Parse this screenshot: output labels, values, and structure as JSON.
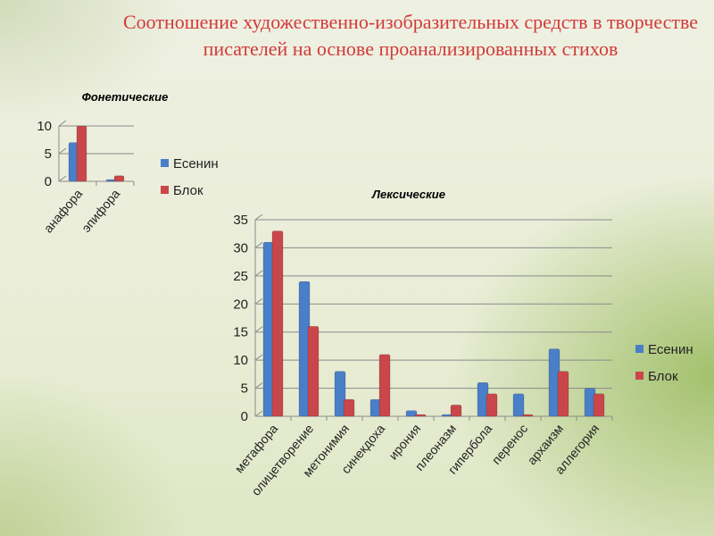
{
  "title": "Соотношение художественно-изобразительных средств в творчестве писателей на основе проанализированных стихов",
  "colors": {
    "esenin": "#4a7ec9",
    "blok": "#c9474a",
    "title": "#d23a3a"
  },
  "chart_data": [
    {
      "type": "bar",
      "title": "Фонетические",
      "categories": [
        "анафора",
        "эпифора"
      ],
      "series": [
        {
          "name": "Есенин",
          "values": [
            7,
            0
          ]
        },
        {
          "name": "Блок",
          "values": [
            10,
            1
          ]
        }
      ],
      "yticks": [
        0,
        5,
        10
      ],
      "ylim": [
        0,
        10
      ],
      "grid": true,
      "legend": "right"
    },
    {
      "type": "bar",
      "title": "Лексические",
      "categories": [
        "метафора",
        "олицетворение",
        "метонимия",
        "синекдоха",
        "ирония",
        "плеоназм",
        "гипербола",
        "перенос",
        "архаизм",
        "аллегория"
      ],
      "series": [
        {
          "name": "Есенин",
          "values": [
            31,
            24,
            8,
            3,
            1,
            0,
            6,
            4,
            12,
            5
          ]
        },
        {
          "name": "Блок",
          "values": [
            33,
            16,
            3,
            11,
            0,
            2,
            4,
            0,
            8,
            4
          ]
        }
      ],
      "yticks": [
        0,
        5,
        10,
        15,
        20,
        25,
        30,
        35
      ],
      "ylim": [
        0,
        35
      ],
      "grid": true,
      "legend": "right"
    }
  ]
}
